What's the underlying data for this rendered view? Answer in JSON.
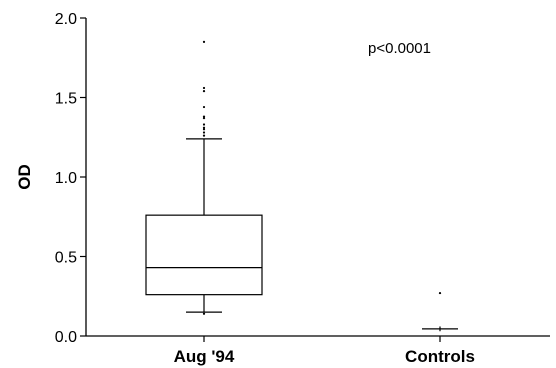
{
  "chart_data": {
    "type": "box",
    "ylabel": "OD",
    "xlabel": "",
    "ylim": [
      0,
      2.0
    ],
    "yticks": [
      "0.0",
      "0.5",
      "1.0",
      "1.5",
      "2.0"
    ],
    "annotation": "p<0.0001",
    "grid": false,
    "categories": [
      "Aug '94",
      "Controls"
    ],
    "boxes": [
      {
        "category": "Aug '94",
        "whisker_low": 0.15,
        "q1": 0.26,
        "median": 0.43,
        "q3": 0.76,
        "whisker_high": 1.24,
        "outliers": [
          0.14,
          1.26,
          1.28,
          1.3,
          1.31,
          1.33,
          1.37,
          1.38,
          1.44,
          1.54,
          1.56,
          1.85
        ]
      },
      {
        "category": "Controls",
        "whisker_low": 0.03,
        "q1": 0.04,
        "median": 0.045,
        "q3": 0.05,
        "whisker_high": 0.06,
        "outliers": [
          0.27
        ]
      }
    ]
  }
}
